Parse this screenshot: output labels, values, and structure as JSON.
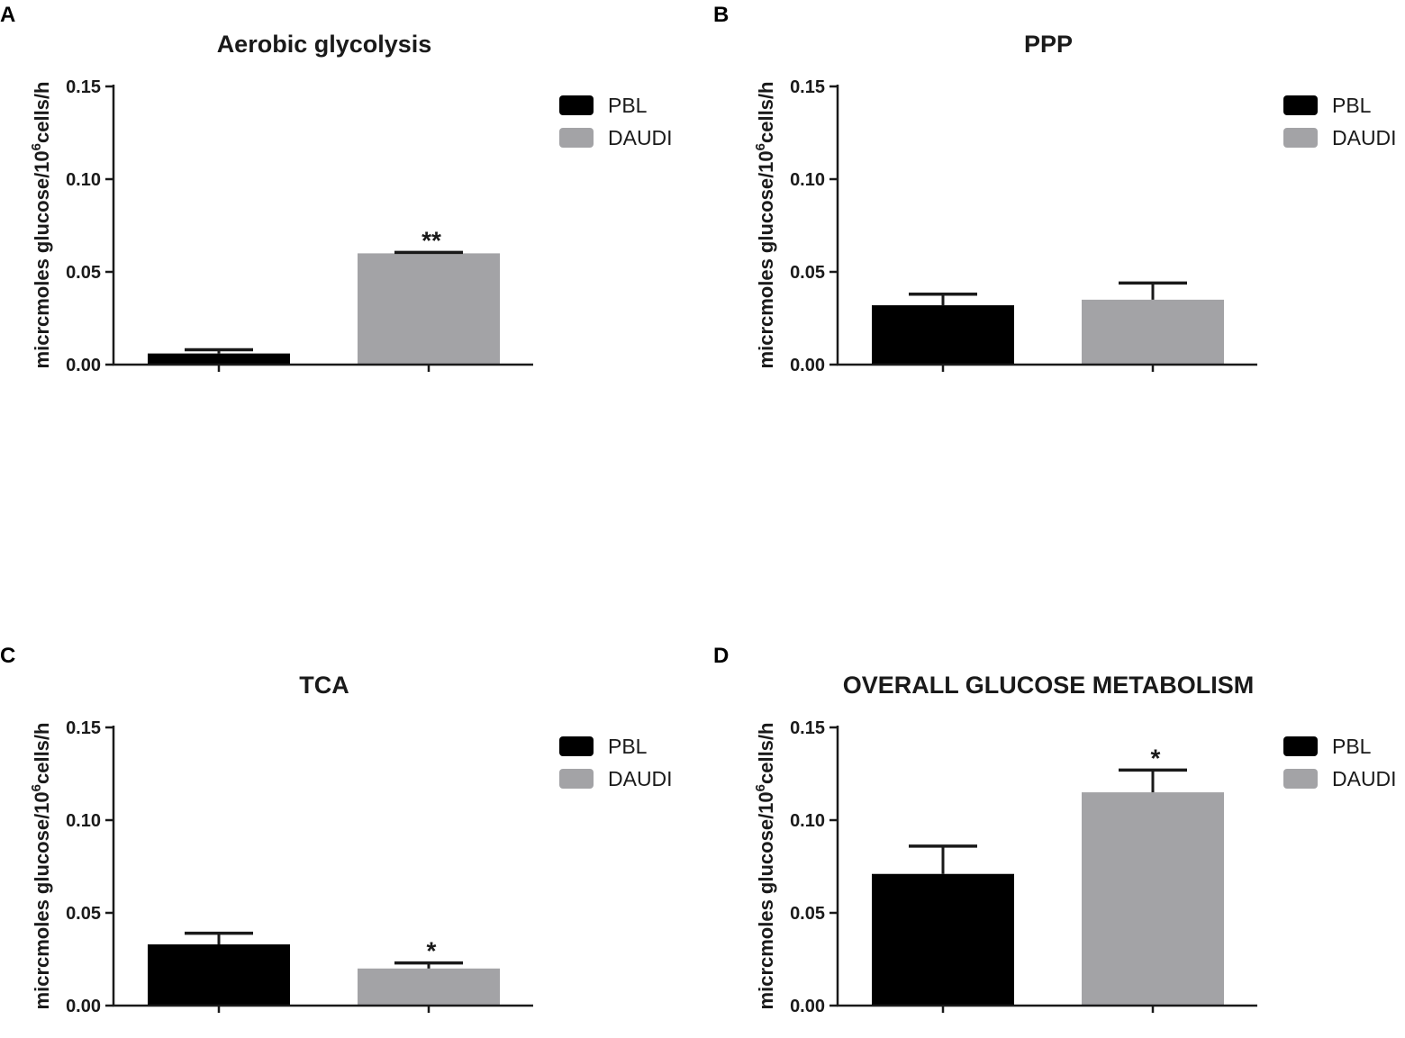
{
  "figure": {
    "colors": {
      "PBL": "#000000",
      "DAUDI": "#a3a3a6",
      "axis": "#1a1a1a"
    }
  },
  "chart_data": [
    {
      "panel": "A",
      "type": "bar",
      "title": "Aerobic glycolysis",
      "xlabel": "",
      "ylabel": "micrcmoles glucose/10^6cells/h",
      "ylabel_parts": {
        "pre": "micrcmoles glucose/10",
        "sup": "6",
        "post": "cells/h"
      },
      "ylim": [
        0,
        0.15
      ],
      "yticks": [
        "0.00",
        "0.05",
        "0.10",
        "0.15"
      ],
      "legend": [
        "PBL",
        "DAUDI"
      ],
      "legend_position": "top-right",
      "categories": [
        "PBL",
        "DAUDI"
      ],
      "values": [
        0.006,
        0.06
      ],
      "errors": [
        0.002,
        0.0005
      ],
      "significance": [
        "",
        "**"
      ]
    },
    {
      "panel": "B",
      "type": "bar",
      "title": "PPP",
      "xlabel": "",
      "ylabel": "micrcmoles glucose/10^6cells/h",
      "ylabel_parts": {
        "pre": "micrcmoles glucose/10",
        "sup": "6",
        "post": "cells/h"
      },
      "ylim": [
        0,
        0.15
      ],
      "yticks": [
        "0.00",
        "0.05",
        "0.10",
        "0.15"
      ],
      "legend": [
        "PBL",
        "DAUDI"
      ],
      "legend_position": "top-right",
      "categories": [
        "PBL",
        "DAUDI"
      ],
      "values": [
        0.032,
        0.035
      ],
      "errors": [
        0.006,
        0.009
      ],
      "significance": [
        "",
        ""
      ]
    },
    {
      "panel": "C",
      "type": "bar",
      "title": "TCA",
      "xlabel": "",
      "ylabel": "micrcmoles glucose/10^6cells/h",
      "ylabel_parts": {
        "pre": "micrcmoles glucose/10",
        "sup": "6",
        "post": "cells/h"
      },
      "ylim": [
        0,
        0.15
      ],
      "yticks": [
        "0.00",
        "0.05",
        "0.10",
        "0.15"
      ],
      "legend": [
        "PBL",
        "DAUDI"
      ],
      "legend_position": "top-right",
      "categories": [
        "PBL",
        "DAUDI"
      ],
      "values": [
        0.033,
        0.02
      ],
      "errors": [
        0.006,
        0.003
      ],
      "significance": [
        "",
        "*"
      ]
    },
    {
      "panel": "D",
      "type": "bar",
      "title": "OVERALL GLUCOSE METABOLISM",
      "xlabel": "",
      "ylabel": "micrcmoles glucose/10^6cells/h",
      "ylabel_parts": {
        "pre": "micrcmoles glucose/10",
        "sup": "6",
        "post": "cells/h"
      },
      "ylim": [
        0,
        0.15
      ],
      "yticks": [
        "0.00",
        "0.05",
        "0.10",
        "0.15"
      ],
      "legend": [
        "PBL",
        "DAUDI"
      ],
      "legend_position": "top-right",
      "categories": [
        "PBL",
        "DAUDI"
      ],
      "values": [
        0.071,
        0.115
      ],
      "errors": [
        0.015,
        0.012
      ],
      "significance": [
        "",
        "*"
      ]
    }
  ]
}
